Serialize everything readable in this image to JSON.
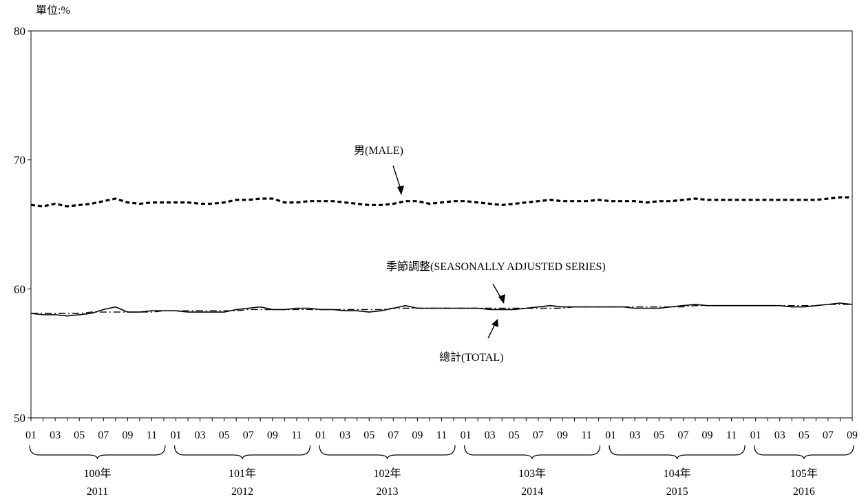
{
  "unit_label": "單位:%",
  "chart_data": {
    "type": "line",
    "ylim": [
      50,
      80
    ],
    "yticks": [
      "50",
      "60",
      "70",
      "80"
    ],
    "grid": false,
    "x_tick_labels": [
      "01",
      "03",
      "05",
      "07",
      "09",
      "11",
      "01",
      "03",
      "05",
      "07",
      "09",
      "11",
      "01",
      "03",
      "05",
      "07",
      "09",
      "11",
      "01",
      "03",
      "05",
      "07",
      "09",
      "11",
      "01",
      "03",
      "05",
      "07",
      "09",
      "11",
      "01",
      "03",
      "05",
      "07",
      "09"
    ],
    "year_groups": [
      {
        "roc": "100年",
        "year": "2011"
      },
      {
        "roc": "101年",
        "year": "2012"
      },
      {
        "roc": "102年",
        "year": "2013"
      },
      {
        "roc": "103年",
        "year": "2014"
      },
      {
        "roc": "104年",
        "year": "2015"
      },
      {
        "roc": "105年",
        "year": "2016"
      }
    ],
    "x_start": "2011-01",
    "x_end": "2016-09",
    "series": [
      {
        "name": "男(MALE)",
        "style": "dashed",
        "values": [
          66.5,
          66.4,
          66.6,
          66.4,
          66.5,
          66.6,
          66.8,
          67.0,
          66.7,
          66.6,
          66.7,
          66.7,
          66.7,
          66.7,
          66.6,
          66.6,
          66.7,
          66.9,
          66.9,
          67.0,
          67.0,
          66.7,
          66.7,
          66.8,
          66.8,
          66.8,
          66.7,
          66.6,
          66.5,
          66.5,
          66.6,
          66.8,
          66.8,
          66.6,
          66.7,
          66.8,
          66.8,
          66.7,
          66.6,
          66.5,
          66.6,
          66.7,
          66.8,
          66.9,
          66.8,
          66.8,
          66.8,
          66.9,
          66.8,
          66.8,
          66.8,
          66.7,
          66.8,
          66.8,
          66.9,
          67.0,
          66.9,
          66.9,
          66.9,
          66.9,
          66.9,
          66.9,
          66.9,
          66.9,
          66.9,
          66.9,
          67.0,
          67.1,
          67.1
        ]
      },
      {
        "name": "總計(TOTAL)",
        "style": "solid",
        "values": [
          58.1,
          58.0,
          58.0,
          57.9,
          58.0,
          58.1,
          58.4,
          58.6,
          58.2,
          58.2,
          58.3,
          58.3,
          58.3,
          58.2,
          58.2,
          58.2,
          58.2,
          58.4,
          58.5,
          58.6,
          58.4,
          58.4,
          58.5,
          58.5,
          58.4,
          58.4,
          58.3,
          58.3,
          58.2,
          58.3,
          58.5,
          58.7,
          58.5,
          58.5,
          58.5,
          58.5,
          58.5,
          58.5,
          58.4,
          58.4,
          58.4,
          58.5,
          58.6,
          58.7,
          58.6,
          58.6,
          58.6,
          58.6,
          58.6,
          58.6,
          58.5,
          58.5,
          58.5,
          58.6,
          58.7,
          58.8,
          58.7,
          58.7,
          58.7,
          58.7,
          58.7,
          58.7,
          58.7,
          58.6,
          58.6,
          58.7,
          58.8,
          58.9,
          58.8
        ]
      },
      {
        "name": "季節調整(SEASONALLY ADJUSTED SERIES)",
        "style": "dash-dot",
        "values": [
          58.1,
          58.1,
          58.1,
          58.1,
          58.1,
          58.2,
          58.2,
          58.2,
          58.2,
          58.2,
          58.2,
          58.3,
          58.3,
          58.3,
          58.3,
          58.3,
          58.3,
          58.3,
          58.4,
          58.4,
          58.4,
          58.4,
          58.4,
          58.4,
          58.4,
          58.4,
          58.4,
          58.4,
          58.4,
          58.4,
          58.5,
          58.5,
          58.5,
          58.5,
          58.5,
          58.5,
          58.5,
          58.5,
          58.5,
          58.5,
          58.5,
          58.5,
          58.5,
          58.5,
          58.5,
          58.6,
          58.6,
          58.6,
          58.6,
          58.6,
          58.6,
          58.6,
          58.6,
          58.6,
          58.6,
          58.7,
          58.7,
          58.7,
          58.7,
          58.7,
          58.7,
          58.7,
          58.7,
          58.7,
          58.7,
          58.7,
          58.8,
          58.8,
          58.8
        ]
      }
    ]
  }
}
